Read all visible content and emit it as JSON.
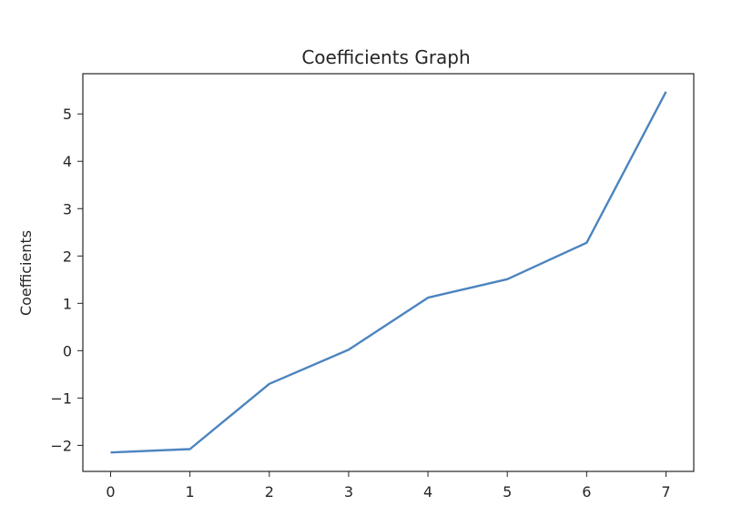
{
  "chart_data": {
    "type": "line",
    "title": "Coefficients Graph",
    "xlabel": "",
    "ylabel": "Coefficients",
    "xlim": [
      -0.35,
      7.35
    ],
    "ylim": [
      -2.55,
      5.85
    ],
    "x_ticks": [
      0,
      1,
      2,
      3,
      4,
      5,
      6,
      7
    ],
    "y_ticks": [
      -2,
      -1,
      0,
      1,
      2,
      3,
      4,
      5
    ],
    "y_tick_labels": [
      "−2",
      "−1",
      "0",
      "1",
      "2",
      "3",
      "4",
      "5"
    ],
    "grid": false,
    "x": [
      0,
      1,
      2,
      3,
      4,
      5,
      6,
      7
    ],
    "series": [
      {
        "color": "#4c84bf",
        "values": [
          -2.15,
          -2.08,
          -0.7,
          0.02,
          1.12,
          1.51,
          2.28,
          5.47
        ]
      }
    ]
  }
}
